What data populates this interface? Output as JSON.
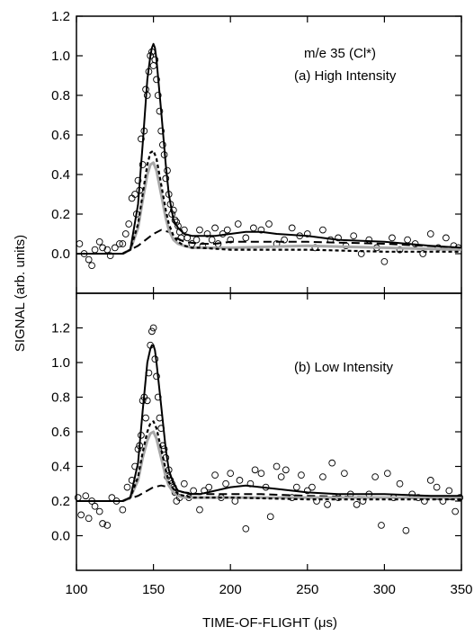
{
  "figure": {
    "ylabel": "SIGNAL (arb. units)",
    "xlabel_prefix": "TIME-OF-FLIGHT (",
    "xlabel_unit": "μs",
    "xlabel_suffix": ")"
  },
  "chart_data": [
    {
      "type": "line",
      "panel": "a",
      "annotations": [
        "m/e 35 (Cl*)",
        "(a) High Intensity"
      ],
      "xlim": [
        100,
        350
      ],
      "ylim": [
        -0.2,
        1.2
      ],
      "xticks": [
        100,
        150,
        200,
        250,
        300,
        350
      ],
      "yticks": [
        0.0,
        0.2,
        0.4,
        0.6,
        0.8,
        1.0,
        1.2
      ],
      "ytick_labels": [
        "0.0",
        "0.2",
        "0.4",
        "0.6",
        "0.8",
        "1.0",
        "1.2"
      ],
      "series": [
        {
          "style": "solid-black",
          "x": [
            100,
            130,
            135,
            140,
            143,
            146,
            148,
            149,
            150,
            151,
            152,
            155,
            158,
            160,
            163,
            166,
            170,
            175,
            180,
            190,
            200,
            210,
            220,
            230,
            250,
            270,
            300,
            330,
            350
          ],
          "y": [
            0,
            0,
            0.02,
            0.25,
            0.55,
            0.88,
            1.0,
            1.04,
            1.06,
            1.04,
            0.98,
            0.72,
            0.45,
            0.3,
            0.17,
            0.13,
            0.1,
            0.09,
            0.09,
            0.09,
            0.1,
            0.11,
            0.11,
            0.1,
            0.09,
            0.07,
            0.06,
            0.04,
            0.03
          ]
        },
        {
          "style": "short-dash-black",
          "x": [
            130,
            135,
            140,
            143,
            146,
            148,
            150,
            152,
            155,
            158,
            160,
            163,
            166,
            170,
            175,
            180,
            200,
            250,
            300,
            350
          ],
          "y": [
            0,
            0.02,
            0.15,
            0.3,
            0.45,
            0.51,
            0.52,
            0.48,
            0.35,
            0.22,
            0.15,
            0.09,
            0.06,
            0.04,
            0.03,
            0.03,
            0.02,
            0.02,
            0.01,
            0.01
          ]
        },
        {
          "style": "solid-gray",
          "x": [
            130,
            135,
            140,
            143,
            146,
            148,
            150,
            152,
            155,
            158,
            160,
            163,
            166,
            170,
            175,
            180,
            200,
            250,
            300,
            350
          ],
          "y": [
            0,
            0.02,
            0.13,
            0.27,
            0.4,
            0.45,
            0.46,
            0.42,
            0.3,
            0.18,
            0.12,
            0.07,
            0.05,
            0.04,
            0.03,
            0.03,
            0.03,
            0.04,
            0.03,
            0.02
          ]
        },
        {
          "style": "long-dash-black",
          "x": [
            130,
            140,
            150,
            155,
            160,
            165,
            170,
            180,
            190,
            200,
            220,
            250,
            300,
            350
          ],
          "y": [
            0,
            0.04,
            0.1,
            0.12,
            0.11,
            0.08,
            0.06,
            0.05,
            0.05,
            0.06,
            0.06,
            0.06,
            0.05,
            0.03
          ]
        },
        {
          "style": "open-circles",
          "x": [
            102,
            105,
            108,
            110,
            112,
            115,
            117,
            120,
            122,
            125,
            128,
            130,
            132,
            134,
            136,
            138,
            139,
            140,
            141,
            142,
            143,
            144,
            145,
            146,
            147,
            148,
            149,
            150,
            151,
            152,
            153,
            154,
            155,
            156,
            157,
            158,
            159,
            160,
            161,
            162,
            163,
            164,
            165,
            166,
            167,
            168,
            170,
            172,
            175,
            178,
            180,
            182,
            185,
            188,
            190,
            192,
            195,
            198,
            200,
            205,
            210,
            215,
            220,
            225,
            230,
            235,
            240,
            245,
            250,
            255,
            260,
            265,
            270,
            275,
            280,
            285,
            290,
            295,
            300,
            305,
            310,
            315,
            320,
            325,
            330,
            335,
            340,
            345,
            348
          ],
          "y": [
            0.05,
            0.0,
            -0.03,
            -0.06,
            0.02,
            0.06,
            0.03,
            0.02,
            -0.01,
            0.03,
            0.05,
            0.05,
            0.1,
            0.15,
            0.28,
            0.3,
            0.2,
            0.37,
            0.32,
            0.58,
            0.45,
            0.62,
            0.83,
            0.8,
            0.92,
            1.0,
            1.02,
            0.95,
            0.98,
            0.88,
            0.8,
            0.72,
            0.62,
            0.55,
            0.5,
            0.38,
            0.42,
            0.3,
            0.25,
            0.2,
            0.22,
            0.17,
            0.16,
            0.14,
            0.11,
            0.08,
            0.12,
            0.08,
            0.05,
            0.07,
            0.12,
            0.04,
            0.1,
            0.07,
            0.13,
            0.05,
            0.1,
            0.12,
            0.07,
            0.15,
            0.08,
            0.13,
            0.12,
            0.15,
            0.05,
            0.07,
            0.13,
            0.09,
            0.1,
            0.03,
            0.12,
            0.07,
            0.08,
            0.04,
            0.09,
            0.0,
            0.07,
            0.03,
            -0.04,
            0.08,
            0.02,
            0.07,
            0.05,
            0.0,
            0.1,
            0.03,
            0.08,
            0.04,
            0.03
          ]
        }
      ]
    },
    {
      "type": "line",
      "panel": "b",
      "annotations": [
        "(b) Low Intensity"
      ],
      "xlim": [
        100,
        350
      ],
      "ylim": [
        -0.2,
        1.4
      ],
      "xticks": [
        100,
        150,
        200,
        250,
        300,
        350
      ],
      "xtick_labels": [
        "100",
        "150",
        "200",
        "250",
        "300",
        "350"
      ],
      "yticks": [
        0.0,
        0.2,
        0.4,
        0.6,
        0.8,
        1.0,
        1.2
      ],
      "ytick_labels": [
        "0.0",
        "0.2",
        "0.4",
        "0.6",
        "0.8",
        "1.0",
        "1.2"
      ],
      "series": [
        {
          "style": "solid-black",
          "x": [
            100,
            130,
            135,
            140,
            143,
            146,
            148,
            149,
            150,
            151,
            152,
            155,
            158,
            160,
            163,
            166,
            170,
            175,
            180,
            190,
            200,
            210,
            220,
            230,
            250,
            270,
            300,
            330,
            350
          ],
          "y": [
            0.2,
            0.2,
            0.22,
            0.42,
            0.72,
            1.0,
            1.08,
            1.1,
            1.1,
            1.07,
            1.0,
            0.75,
            0.5,
            0.38,
            0.3,
            0.26,
            0.25,
            0.24,
            0.24,
            0.26,
            0.28,
            0.29,
            0.28,
            0.27,
            0.25,
            0.24,
            0.24,
            0.23,
            0.23
          ]
        },
        {
          "style": "short-dash-black",
          "x": [
            130,
            135,
            140,
            143,
            146,
            148,
            150,
            152,
            155,
            158,
            160,
            163,
            166,
            170,
            175,
            180,
            200,
            250,
            300,
            350
          ],
          "y": [
            0.2,
            0.22,
            0.34,
            0.48,
            0.6,
            0.65,
            0.66,
            0.62,
            0.5,
            0.38,
            0.31,
            0.27,
            0.24,
            0.23,
            0.22,
            0.22,
            0.22,
            0.21,
            0.21,
            0.21
          ]
        },
        {
          "style": "solid-gray",
          "x": [
            130,
            135,
            140,
            143,
            146,
            148,
            150,
            152,
            155,
            158,
            160,
            163,
            166,
            170,
            175,
            180,
            200,
            250,
            300,
            350
          ],
          "y": [
            0.2,
            0.22,
            0.32,
            0.45,
            0.55,
            0.59,
            0.6,
            0.56,
            0.45,
            0.34,
            0.29,
            0.25,
            0.23,
            0.22,
            0.22,
            0.22,
            0.22,
            0.22,
            0.22,
            0.22
          ]
        },
        {
          "style": "long-dash-black",
          "x": [
            130,
            140,
            150,
            155,
            160,
            165,
            170,
            180,
            190,
            200,
            220,
            250,
            300,
            350
          ],
          "y": [
            0.2,
            0.23,
            0.28,
            0.29,
            0.28,
            0.26,
            0.25,
            0.24,
            0.24,
            0.24,
            0.24,
            0.23,
            0.22,
            0.21
          ]
        },
        {
          "style": "open-circles",
          "x": [
            101,
            103,
            106,
            108,
            110,
            112,
            115,
            117,
            120,
            123,
            126,
            130,
            133,
            136,
            138,
            140,
            141,
            142,
            143,
            144,
            145,
            146,
            147,
            148,
            149,
            150,
            151,
            152,
            153,
            154,
            155,
            156,
            157,
            158,
            159,
            160,
            161,
            162,
            163,
            164,
            165,
            167,
            170,
            173,
            176,
            180,
            183,
            186,
            190,
            194,
            197,
            200,
            203,
            206,
            210,
            213,
            216,
            220,
            223,
            226,
            230,
            233,
            236,
            240,
            243,
            246,
            250,
            253,
            256,
            260,
            263,
            266,
            270,
            274,
            278,
            282,
            286,
            290,
            294,
            298,
            302,
            306,
            310,
            314,
            318,
            322,
            326,
            330,
            334,
            338,
            342,
            346,
            349
          ],
          "y": [
            0.22,
            0.12,
            0.23,
            0.1,
            0.2,
            0.17,
            0.14,
            0.07,
            0.06,
            0.22,
            0.2,
            0.15,
            0.28,
            0.32,
            0.4,
            0.5,
            0.52,
            0.58,
            0.78,
            0.8,
            0.68,
            0.78,
            0.94,
            1.1,
            1.18,
            1.2,
            1.02,
            0.92,
            0.8,
            0.68,
            0.62,
            0.52,
            0.5,
            0.45,
            0.34,
            0.38,
            0.32,
            0.3,
            0.28,
            0.25,
            0.2,
            0.22,
            0.3,
            0.22,
            0.26,
            0.15,
            0.26,
            0.28,
            0.35,
            0.22,
            0.3,
            0.36,
            0.2,
            0.32,
            0.04,
            0.3,
            0.38,
            0.36,
            0.28,
            0.11,
            0.4,
            0.34,
            0.38,
            0.22,
            0.28,
            0.35,
            0.26,
            0.28,
            0.2,
            0.34,
            0.18,
            0.42,
            0.22,
            0.36,
            0.24,
            0.18,
            0.2,
            0.24,
            0.34,
            0.06,
            0.36,
            0.22,
            0.3,
            0.03,
            0.24,
            0.22,
            0.2,
            0.32,
            0.28,
            0.2,
            0.26,
            0.14,
            0.22
          ]
        }
      ]
    }
  ]
}
